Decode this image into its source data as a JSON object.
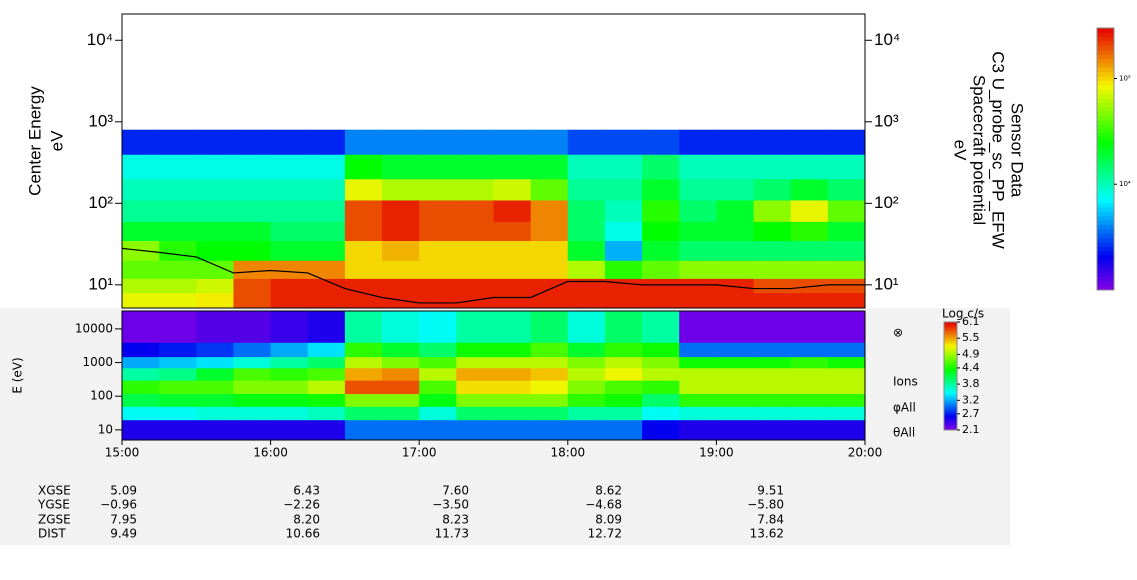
{
  "chart_data": [
    {
      "type": "heatmap",
      "ylabel": [
        "Center Energy",
        "eV"
      ],
      "y2label": [
        "Sensor Data",
        "C3 U_probe_sc_PP_EFW",
        "Spacecraft potential",
        "eV"
      ],
      "log_y": true,
      "xlim": [
        15,
        20
      ],
      "ylim": [
        5.2,
        21000
      ],
      "yticks": [
        {
          "value": 10,
          "label": "10¹"
        },
        {
          "value": 100,
          "label": "10²"
        },
        {
          "value": 1000,
          "label": "10³"
        },
        {
          "value": 10000,
          "label": "10⁴"
        }
      ],
      "y2lim": [
        5.2,
        21000
      ],
      "y2ticks": [
        {
          "value": 10,
          "label": "10¹"
        },
        {
          "value": 100,
          "label": "10²"
        },
        {
          "value": 1000,
          "label": "10³"
        },
        {
          "value": 10000,
          "label": "10⁴"
        }
      ],
      "x_edges": [
        15,
        15.25,
        15.5,
        15.75,
        16,
        16.25,
        16.5,
        16.75,
        17,
        17.25,
        17.5,
        17.75,
        18,
        18.25,
        18.5,
        18.75,
        19,
        19.25,
        19.5,
        19.75,
        20
      ],
      "y_edges": [
        5.2,
        8,
        12,
        20,
        35,
        60,
        110,
        200,
        400,
        800
      ],
      "values": [
        [
          80000,
          80000,
          90000,
          200000,
          250000,
          250000,
          250000,
          250000,
          250000,
          250000,
          250000,
          250000,
          250000,
          250000,
          250000,
          250000,
          250000,
          250000,
          250000,
          250000
        ],
        [
          60000,
          60000,
          70000,
          200000,
          250000,
          250000,
          250000,
          250000,
          250000,
          250000,
          250000,
          250000,
          250000,
          250000,
          250000,
          250000,
          250000,
          200000,
          200000,
          200000
        ],
        [
          40000,
          40000,
          40000,
          150000,
          150000,
          150000,
          100000,
          100000,
          100000,
          100000,
          100000,
          100000,
          60000,
          30000,
          40000,
          50000,
          50000,
          50000,
          50000,
          50000
        ],
        [
          50000,
          30000,
          25000,
          25000,
          20000,
          20000,
          100000,
          120000,
          100000,
          100000,
          100000,
          100000,
          20000,
          5000,
          20000,
          15000,
          15000,
          15000,
          15000,
          15000
        ],
        [
          20000,
          20000,
          20000,
          20000,
          15000,
          15000,
          200000,
          250000,
          200000,
          200000,
          200000,
          150000,
          15000,
          8000,
          25000,
          20000,
          20000,
          25000,
          30000,
          20000
        ],
        [
          12000,
          12000,
          12000,
          12000,
          12000,
          12000,
          200000,
          250000,
          200000,
          200000,
          250000,
          150000,
          15000,
          10000,
          30000,
          15000,
          20000,
          50000,
          80000,
          40000
        ],
        [
          10000,
          10000,
          10000,
          10000,
          10000,
          10000,
          80000,
          60000,
          60000,
          60000,
          70000,
          40000,
          12000,
          12000,
          20000,
          12000,
          12000,
          15000,
          20000,
          15000
        ],
        [
          8000,
          8000,
          8000,
          8000,
          8000,
          8000,
          25000,
          20000,
          20000,
          20000,
          20000,
          20000,
          10000,
          10000,
          15000,
          10000,
          10000,
          10000,
          10000,
          10000
        ],
        [
          2500,
          2500,
          2500,
          2500,
          2500,
          2500,
          4000,
          4000,
          4000,
          4000,
          4000,
          4000,
          3000,
          3000,
          3000,
          2500,
          2500,
          2500,
          2500,
          2500
        ]
      ],
      "log_color": true,
      "clim": [
        1000,
        300000
      ],
      "cticks": [
        {
          "value": 100000,
          "label": "10⁵"
        },
        {
          "value": 10000,
          "label": "10⁴"
        }
      ],
      "series": [
        {
          "color": "#000000",
          "x": [
            15,
            15.25,
            15.5,
            15.75,
            16,
            16.25,
            16.5,
            16.75,
            17,
            17.25,
            17.5,
            17.75,
            18,
            18.25,
            18.5,
            18.75,
            19,
            19.25,
            19.5,
            19.75,
            20
          ],
          "values": [
            28,
            25,
            22,
            14,
            15,
            14,
            9,
            7,
            6,
            6,
            7,
            7,
            11,
            11,
            10,
            10,
            10,
            9,
            9,
            10,
            10
          ]
        }
      ]
    },
    {
      "type": "heatmap",
      "ylabel": [
        "E (eV)"
      ],
      "side_labels": [
        "⊗",
        "Ions",
        "φAll",
        "θAll"
      ],
      "log_y": true,
      "xlim": [
        15,
        20
      ],
      "xticks": [
        {
          "value": 15,
          "label": "15:00"
        },
        {
          "value": 16,
          "label": "16:00"
        },
        {
          "value": 17,
          "label": "17:00"
        },
        {
          "value": 18,
          "label": "18:00"
        },
        {
          "value": 19,
          "label": "19:00"
        },
        {
          "value": 20,
          "label": "20:00"
        }
      ],
      "ylim": [
        5,
        34000
      ],
      "yticks": [
        10,
        100,
        1000,
        10000
      ],
      "x_edges": [
        15,
        15.25,
        15.5,
        15.75,
        16,
        16.25,
        16.5,
        16.75,
        17,
        17.25,
        17.5,
        17.75,
        18,
        18.25,
        18.5,
        18.75,
        19,
        19.25,
        19.5,
        19.75,
        20
      ],
      "y_edges": [
        5,
        20,
        50,
        120,
        300,
        700,
        1500,
        4000,
        34000
      ],
      "values": [
        [
          2.5,
          2.5,
          2.5,
          2.5,
          2.5,
          2.5,
          3.0,
          3.0,
          3.0,
          3.0,
          3.0,
          3.0,
          3.0,
          3.0,
          2.6,
          2.5,
          2.5,
          2.5,
          2.5,
          2.5
        ],
        [
          3.5,
          3.5,
          3.6,
          3.6,
          3.6,
          3.7,
          4.0,
          4.0,
          3.6,
          4.0,
          4.0,
          4.0,
          3.8,
          3.8,
          3.5,
          3.6,
          3.6,
          3.6,
          3.6,
          3.6
        ],
        [
          4.1,
          4.2,
          4.2,
          4.3,
          4.3,
          4.4,
          4.8,
          4.8,
          4.3,
          4.8,
          4.8,
          4.8,
          4.5,
          4.4,
          4.0,
          4.5,
          4.5,
          4.5,
          4.5,
          4.5
        ],
        [
          4.5,
          4.6,
          4.6,
          4.8,
          4.8,
          5.0,
          5.8,
          5.8,
          4.6,
          5.3,
          5.3,
          5.2,
          4.8,
          4.6,
          4.5,
          5.0,
          5.0,
          5.0,
          5.0,
          5.0
        ],
        [
          3.8,
          3.9,
          4.2,
          4.6,
          4.5,
          4.6,
          5.5,
          5.6,
          5.0,
          5.5,
          5.5,
          5.4,
          5.0,
          5.2,
          5.0,
          5.0,
          5.0,
          5.0,
          5.0,
          5.0
        ],
        [
          3.2,
          3.3,
          3.4,
          3.6,
          3.8,
          4.0,
          5.0,
          4.8,
          4.6,
          5.0,
          5.0,
          5.0,
          4.8,
          5.0,
          4.8,
          4.4,
          4.4,
          4.4,
          4.5,
          4.4
        ],
        [
          2.6,
          2.7,
          2.8,
          3.0,
          3.2,
          3.4,
          4.5,
          4.2,
          4.0,
          4.4,
          4.4,
          4.6,
          4.2,
          4.5,
          4.4,
          3.0,
          3.0,
          3.0,
          3.0,
          3.0
        ],
        [
          2.2,
          2.2,
          2.3,
          2.3,
          2.4,
          2.5,
          3.8,
          3.6,
          3.5,
          3.8,
          3.8,
          4.0,
          3.6,
          4.0,
          3.8,
          2.2,
          2.2,
          2.2,
          2.2,
          2.2
        ]
      ],
      "log_color": false,
      "ctitle": "Log c/s",
      "clim": [
        2.1,
        6.1
      ],
      "cticks": [
        6.1,
        5.5,
        4.9,
        4.4,
        3.8,
        3.2,
        2.7,
        2.1
      ]
    }
  ],
  "orbit": {
    "rows": [
      {
        "label": "XGSE",
        "values": [
          "5.09",
          "6.43",
          "7.60",
          "8.62",
          "9.51"
        ]
      },
      {
        "label": "YGSE",
        "values": [
          "−0.96",
          "−2.26",
          "−3.50",
          "−4.68",
          "−5.80"
        ]
      },
      {
        "label": "ZGSE",
        "values": [
          "7.95",
          "8.20",
          "8.23",
          "8.09",
          "7.84"
        ]
      },
      {
        "label": "DIST",
        "values": [
          "9.49",
          "10.66",
          "11.73",
          "12.72",
          "13.62"
        ]
      }
    ]
  }
}
